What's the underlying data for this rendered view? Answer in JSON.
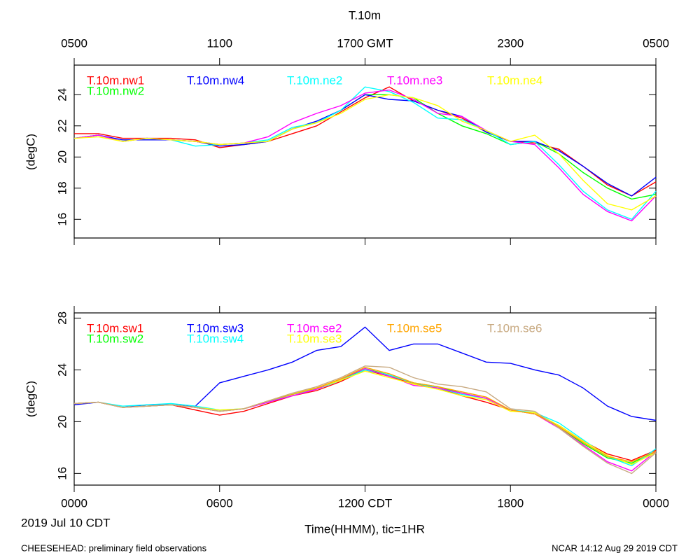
{
  "chart_data": [
    {
      "type": "line",
      "title": "T.10m",
      "ylabel": "(degC)",
      "x": [
        0,
        1,
        2,
        3,
        4,
        5,
        6,
        7,
        8,
        9,
        10,
        11,
        12,
        13,
        14,
        15,
        16,
        17,
        18,
        19,
        20,
        21,
        22,
        23,
        24
      ],
      "xlim": [
        0,
        24
      ],
      "xticks": [
        {
          "value": 0,
          "label": "0500"
        },
        {
          "value": 6,
          "label": "1100"
        },
        {
          "value": 12,
          "label": "1700 GMT"
        },
        {
          "value": 18,
          "label": "2300"
        },
        {
          "value": 24,
          "label": "0500"
        }
      ],
      "ylim": [
        14.8,
        25.9
      ],
      "yticks": [
        16,
        18,
        20,
        22,
        24
      ],
      "series": [
        {
          "name": "T.10m.nw1",
          "color": "#ff0000",
          "values": [
            21.5,
            21.5,
            21.2,
            21.2,
            21.2,
            21.1,
            20.6,
            20.8,
            21.0,
            21.5,
            22.0,
            22.9,
            23.8,
            24.5,
            23.6,
            23.0,
            22.5,
            21.6,
            21.0,
            20.9,
            20.5,
            19.4,
            18.2,
            17.5,
            18.4
          ]
        },
        {
          "name": "T.10m.nw2",
          "color": "#00ff00",
          "values": [
            21.2,
            21.4,
            21.0,
            21.2,
            21.1,
            21.0,
            20.8,
            20.9,
            21.0,
            21.8,
            22.2,
            23.0,
            24.0,
            24.0,
            23.8,
            22.8,
            22.0,
            21.5,
            20.8,
            21.0,
            20.2,
            19.0,
            18.0,
            17.3,
            17.6
          ]
        },
        {
          "name": "T.10m.nw4",
          "color": "#0000ff",
          "values": [
            21.2,
            21.4,
            21.1,
            21.1,
            21.1,
            21.0,
            20.7,
            20.8,
            21.0,
            21.8,
            22.3,
            23.0,
            24.0,
            23.7,
            23.6,
            23.0,
            22.6,
            21.6,
            21.0,
            21.0,
            20.4,
            19.4,
            18.3,
            17.5,
            18.7
          ]
        },
        {
          "name": "T.10m.ne2",
          "color": "#00ffff",
          "values": [
            21.2,
            21.4,
            21.0,
            21.2,
            21.1,
            20.7,
            20.8,
            20.9,
            21.1,
            21.9,
            22.2,
            23.0,
            24.5,
            24.2,
            23.5,
            22.5,
            22.4,
            21.7,
            20.8,
            21.0,
            19.5,
            17.8,
            16.6,
            16.0,
            17.8
          ]
        },
        {
          "name": "T.10m.ne3",
          "color": "#ff00ff",
          "values": [
            21.2,
            21.4,
            21.0,
            21.2,
            21.1,
            21.0,
            20.8,
            20.9,
            21.3,
            22.2,
            22.8,
            23.3,
            24.1,
            24.3,
            23.7,
            22.8,
            22.6,
            21.7,
            21.0,
            20.8,
            19.3,
            17.6,
            16.5,
            15.9,
            17.5
          ]
        },
        {
          "name": "T.10m.ne4",
          "color": "#ffff00",
          "values": [
            21.2,
            21.3,
            21.0,
            21.2,
            21.1,
            21.0,
            20.8,
            20.9,
            21.0,
            21.8,
            22.2,
            22.8,
            23.7,
            24.0,
            23.8,
            23.3,
            22.3,
            21.7,
            21.0,
            21.4,
            20.2,
            18.5,
            17.0,
            16.6,
            17.5
          ]
        }
      ]
    },
    {
      "type": "line",
      "ylabel": "(degC)",
      "xlabel": "Time(HHMM), tic=1HR",
      "annotation": "2019 Jul 10 CDT",
      "x": [
        0,
        1,
        2,
        3,
        4,
        5,
        6,
        7,
        8,
        9,
        10,
        11,
        12,
        13,
        14,
        15,
        16,
        17,
        18,
        19,
        20,
        21,
        22,
        23,
        24
      ],
      "xlim": [
        0,
        24
      ],
      "xticks": [
        {
          "value": 0,
          "label": "0000"
        },
        {
          "value": 6,
          "label": "0600"
        },
        {
          "value": 12,
          "label": "1200 CDT"
        },
        {
          "value": 18,
          "label": "1800"
        },
        {
          "value": 24,
          "label": "0000"
        }
      ],
      "ylim": [
        15.1,
        28.4
      ],
      "yticks": [
        16,
        20,
        24,
        28
      ],
      "series": [
        {
          "name": "T.10m.sw1",
          "color": "#ff0000",
          "values": [
            21.4,
            21.5,
            21.1,
            21.2,
            21.3,
            20.9,
            20.5,
            20.8,
            21.4,
            22.0,
            22.4,
            23.1,
            24.0,
            23.5,
            22.9,
            22.6,
            22.0,
            21.5,
            20.9,
            20.6,
            19.7,
            18.5,
            17.5,
            17.0,
            17.8
          ]
        },
        {
          "name": "T.10m.sw2",
          "color": "#00ff00",
          "values": [
            21.4,
            21.5,
            21.1,
            21.2,
            21.3,
            21.1,
            20.8,
            21.0,
            21.6,
            22.1,
            22.6,
            23.2,
            24.1,
            23.6,
            23.0,
            22.7,
            22.2,
            21.8,
            20.9,
            20.6,
            19.6,
            18.3,
            17.2,
            16.8,
            17.7
          ]
        },
        {
          "name": "T.10m.sw3",
          "color": "#0000ff",
          "values": [
            21.3,
            21.5,
            21.1,
            21.3,
            21.3,
            21.2,
            23.0,
            23.5,
            24.0,
            24.6,
            25.5,
            25.8,
            27.3,
            25.5,
            26.0,
            26.0,
            25.3,
            24.6,
            24.5,
            24.0,
            23.6,
            22.6,
            21.2,
            20.4,
            20.1
          ]
        },
        {
          "name": "T.10m.sw4",
          "color": "#00ffff",
          "values": [
            21.4,
            21.5,
            21.2,
            21.3,
            21.4,
            21.2,
            20.9,
            21.0,
            21.5,
            22.1,
            22.5,
            23.2,
            24.0,
            23.6,
            23.0,
            22.6,
            22.1,
            21.8,
            20.9,
            20.7,
            19.9,
            18.6,
            17.3,
            16.6,
            17.9
          ]
        },
        {
          "name": "T.10m.se2",
          "color": "#ff00ff",
          "values": [
            21.4,
            21.5,
            21.1,
            21.2,
            21.3,
            21.1,
            20.8,
            21.0,
            21.5,
            22.0,
            22.5,
            23.3,
            24.1,
            23.5,
            22.8,
            22.6,
            22.2,
            21.8,
            20.9,
            20.6,
            19.5,
            18.2,
            16.9,
            16.2,
            17.7
          ]
        },
        {
          "name": "T.10m.se3",
          "color": "#ffff00",
          "values": [
            21.4,
            21.5,
            21.1,
            21.2,
            21.3,
            21.1,
            20.9,
            21.0,
            21.6,
            22.2,
            22.6,
            23.2,
            23.9,
            23.4,
            22.9,
            22.5,
            22.0,
            21.7,
            20.8,
            20.7,
            19.7,
            18.5,
            17.4,
            16.7,
            17.6
          ]
        },
        {
          "name": "T.10m.se5",
          "color": "#ffa500",
          "values": [
            21.4,
            21.5,
            21.1,
            21.2,
            21.3,
            21.1,
            20.8,
            21.0,
            21.6,
            22.1,
            22.6,
            23.3,
            24.2,
            23.7,
            23.0,
            22.7,
            22.3,
            21.9,
            20.9,
            20.6,
            19.6,
            18.4,
            17.3,
            16.9,
            17.7
          ]
        },
        {
          "name": "T.10m.se6",
          "color": "#c8aa82",
          "values": [
            21.4,
            21.5,
            21.1,
            21.2,
            21.3,
            21.1,
            20.8,
            21.0,
            21.6,
            22.2,
            22.7,
            23.4,
            24.3,
            24.2,
            23.4,
            22.9,
            22.7,
            22.3,
            21.0,
            20.8,
            19.5,
            18.1,
            16.8,
            16.0,
            17.6
          ]
        }
      ]
    }
  ],
  "footer": {
    "left": "CHEESEHEAD: preliminary field observations",
    "right": "NCAR 14:12 Aug 29 2019 CDT"
  }
}
